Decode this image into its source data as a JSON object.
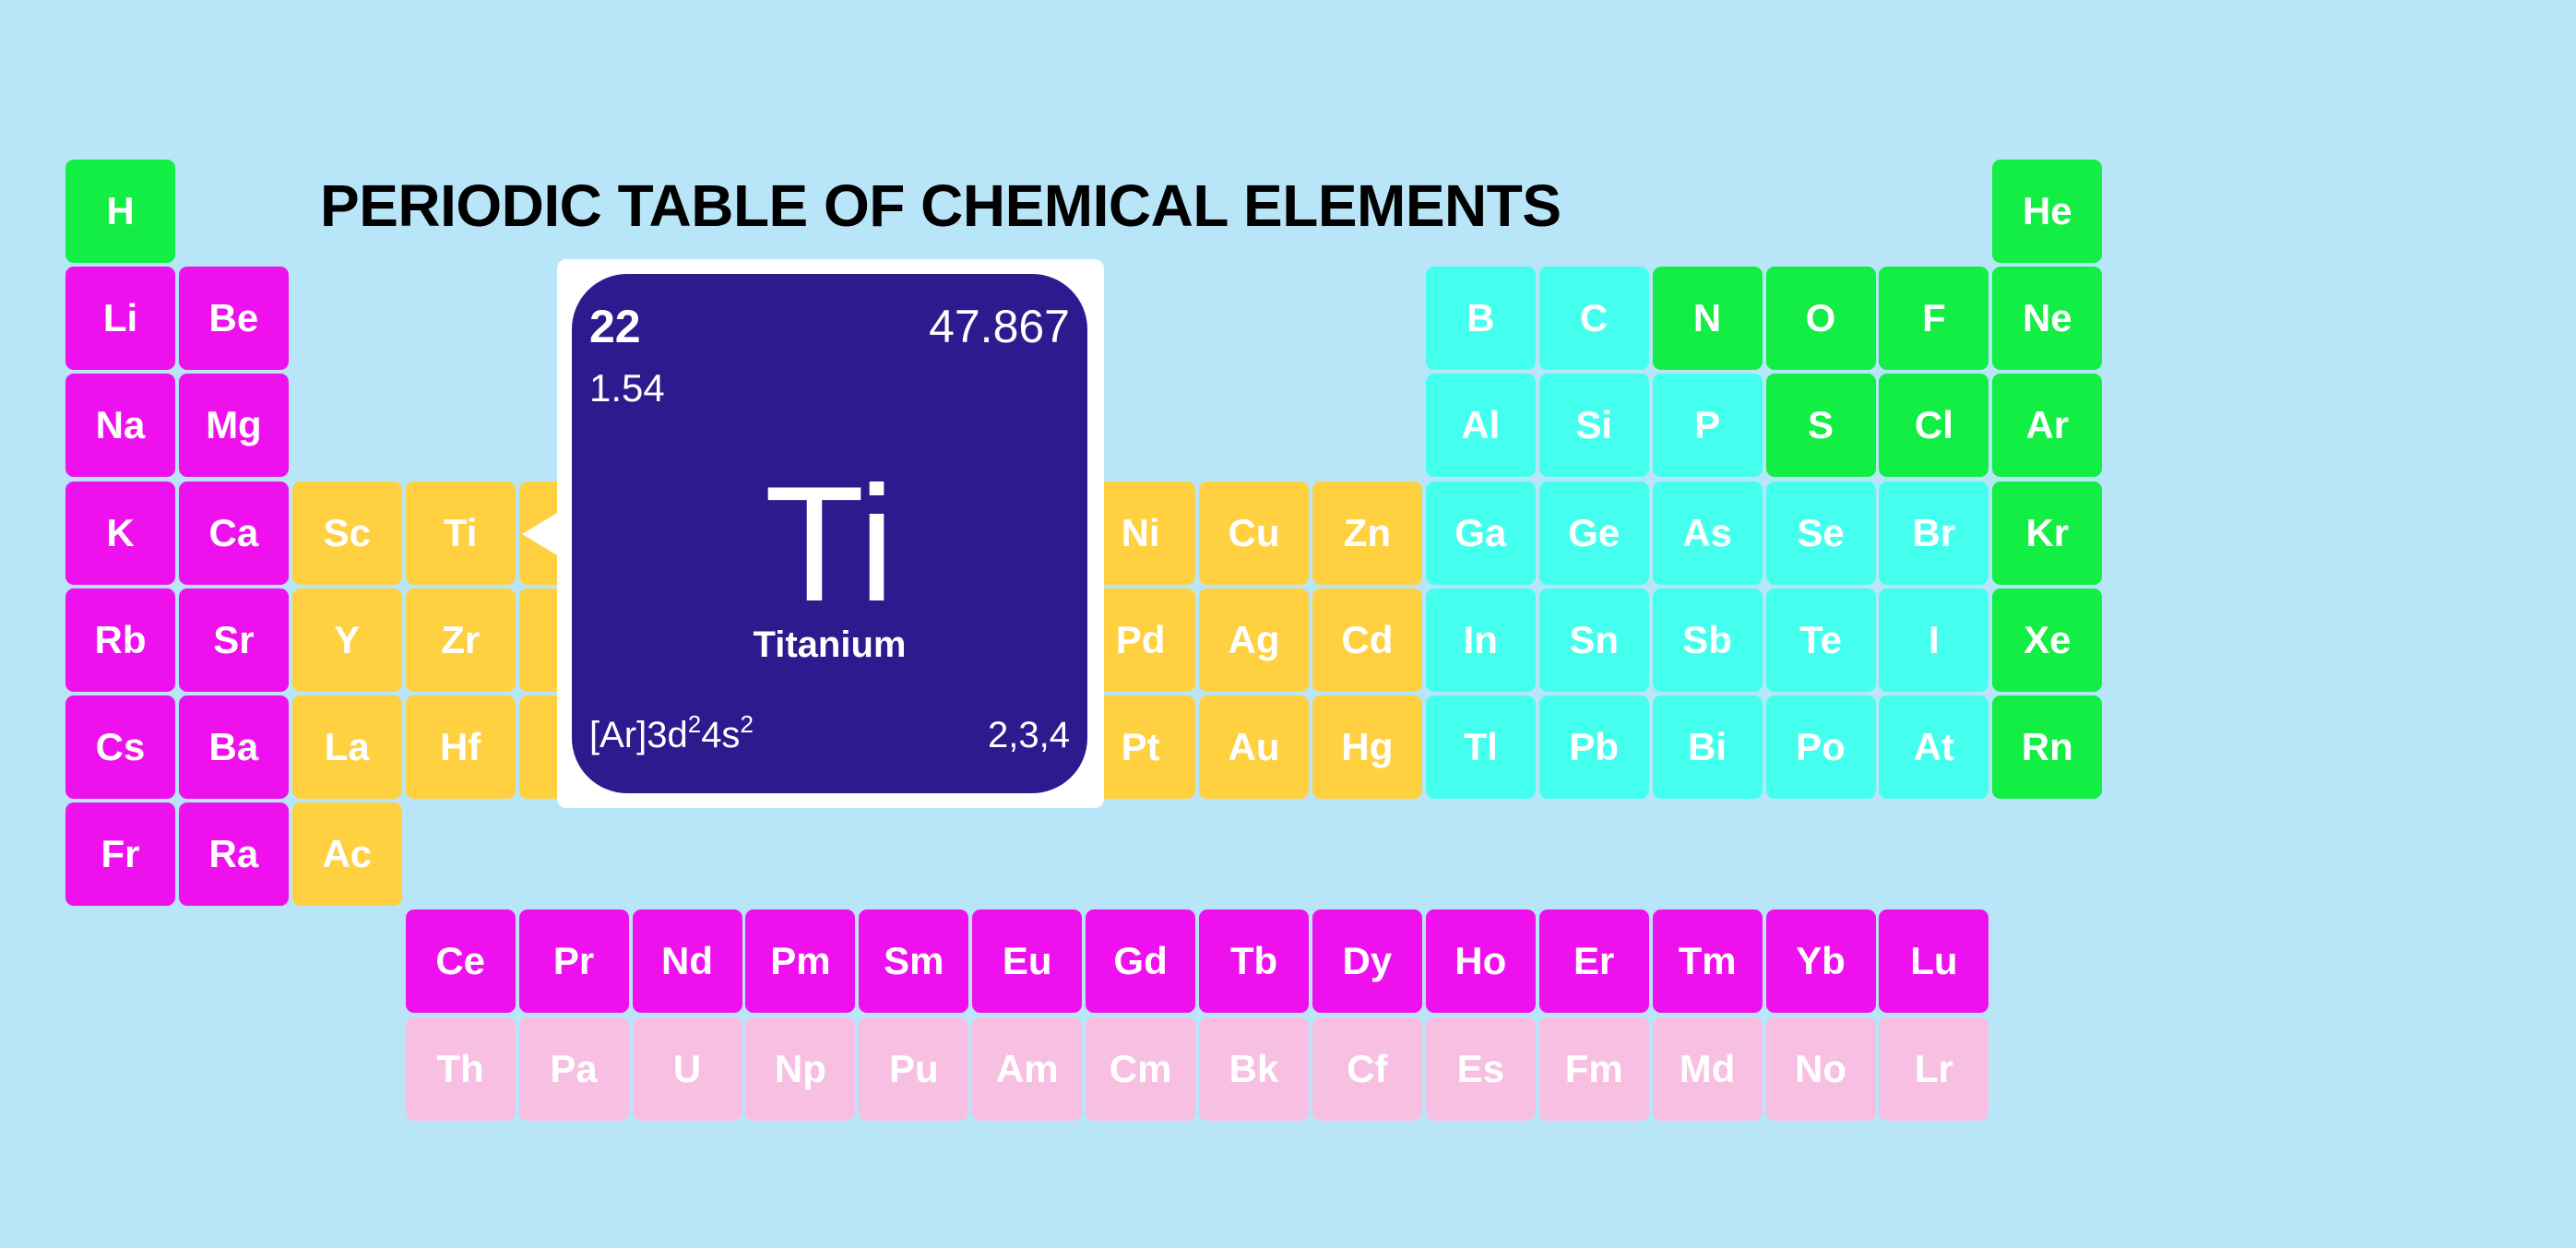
{
  "title": "PERIODIC TABLE OF CHEMICAL ELEMENTS",
  "table": {
    "rows": [
      [
        {
          "symbol": "H",
          "color": "#13ee44"
        },
        null,
        null,
        null,
        null,
        null,
        null,
        null,
        null,
        null,
        null,
        null,
        null,
        null,
        null,
        null,
        null,
        {
          "symbol": "He",
          "color": "#13ee44"
        }
      ],
      [
        {
          "symbol": "Li",
          "color": "#ee11ee"
        },
        {
          "symbol": "Be",
          "color": "#ee11ee"
        },
        null,
        null,
        null,
        null,
        null,
        null,
        null,
        null,
        null,
        null,
        {
          "symbol": "B",
          "color": "#44ffee"
        },
        {
          "symbol": "C",
          "color": "#44ffee"
        },
        {
          "symbol": "N",
          "color": "#13ee44"
        },
        {
          "symbol": "O",
          "color": "#13ee44"
        },
        {
          "symbol": "F",
          "color": "#13ee44"
        },
        {
          "symbol": "Ne",
          "color": "#13ee44"
        }
      ],
      [
        {
          "symbol": "Na",
          "color": "#ee11ee"
        },
        {
          "symbol": "Mg",
          "color": "#ee11ee"
        },
        null,
        null,
        null,
        null,
        null,
        null,
        null,
        null,
        null,
        null,
        {
          "symbol": "Al",
          "color": "#44ffee"
        },
        {
          "symbol": "Si",
          "color": "#44ffee"
        },
        {
          "symbol": "P",
          "color": "#44ffee"
        },
        {
          "symbol": "S",
          "color": "#13ee44"
        },
        {
          "symbol": "Cl",
          "color": "#13ee44"
        },
        {
          "symbol": "Ar",
          "color": "#13ee44"
        }
      ],
      [
        {
          "symbol": "K",
          "color": "#ee11ee"
        },
        {
          "symbol": "Ca",
          "color": "#ee11ee"
        },
        {
          "symbol": "Sc",
          "color": "#ffd040"
        },
        {
          "symbol": "Ti",
          "color": "#ffd040"
        },
        {
          "color": "#ffd040"
        },
        {
          "color": "#ffd040"
        },
        {
          "color": "#ffd040"
        },
        {
          "color": "#ffd040"
        },
        {
          "color": "#ffd040"
        },
        {
          "symbol": "Ni",
          "color": "#ffd040"
        },
        {
          "symbol": "Cu",
          "color": "#ffd040"
        },
        {
          "symbol": "Zn",
          "color": "#ffd040"
        },
        {
          "symbol": "Ga",
          "color": "#44ffee"
        },
        {
          "symbol": "Ge",
          "color": "#44ffee"
        },
        {
          "symbol": "As",
          "color": "#44ffee"
        },
        {
          "symbol": "Se",
          "color": "#44ffee"
        },
        {
          "symbol": "Br",
          "color": "#44ffee"
        },
        {
          "symbol": "Kr",
          "color": "#13ee44"
        }
      ],
      [
        {
          "symbol": "Rb",
          "color": "#ee11ee"
        },
        {
          "symbol": "Sr",
          "color": "#ee11ee"
        },
        {
          "symbol": "Y",
          "color": "#ffd040"
        },
        {
          "symbol": "Zr",
          "color": "#ffd040"
        },
        {
          "color": "#ffd040"
        },
        {
          "color": "#ffd040"
        },
        {
          "color": "#ffd040"
        },
        {
          "color": "#ffd040"
        },
        {
          "color": "#ffd040"
        },
        {
          "symbol": "Pd",
          "color": "#ffd040"
        },
        {
          "symbol": "Ag",
          "color": "#ffd040"
        },
        {
          "symbol": "Cd",
          "color": "#ffd040"
        },
        {
          "symbol": "In",
          "color": "#44ffee"
        },
        {
          "symbol": "Sn",
          "color": "#44ffee"
        },
        {
          "symbol": "Sb",
          "color": "#44ffee"
        },
        {
          "symbol": "Te",
          "color": "#44ffee"
        },
        {
          "symbol": "I",
          "color": "#44ffee"
        },
        {
          "symbol": "Xe",
          "color": "#13ee44"
        }
      ],
      [
        {
          "symbol": "Cs",
          "color": "#ee11ee"
        },
        {
          "symbol": "Ba",
          "color": "#ee11ee"
        },
        {
          "symbol": "La",
          "color": "#ffd040"
        },
        {
          "symbol": "Hf",
          "color": "#ffd040"
        },
        {
          "color": "#ffd040"
        },
        {
          "color": "#ffd040"
        },
        {
          "color": "#ffd040"
        },
        {
          "color": "#ffd040"
        },
        {
          "color": "#ffd040"
        },
        {
          "symbol": "Pt",
          "color": "#ffd040"
        },
        {
          "symbol": "Au",
          "color": "#ffd040"
        },
        {
          "symbol": "Hg",
          "color": "#ffd040"
        },
        {
          "symbol": "Tl",
          "color": "#44ffee"
        },
        {
          "symbol": "Pb",
          "color": "#44ffee"
        },
        {
          "symbol": "Bi",
          "color": "#44ffee"
        },
        {
          "symbol": "Po",
          "color": "#44ffee"
        },
        {
          "symbol": "At",
          "color": "#44ffee"
        },
        {
          "symbol": "Rn",
          "color": "#13ee44"
        }
      ],
      [
        {
          "symbol": "Fr",
          "color": "#ee11ee"
        },
        {
          "symbol": "Ra",
          "color": "#ee11ee"
        },
        {
          "symbol": "Ac",
          "color": "#ffd040"
        },
        null,
        null,
        null,
        null,
        null,
        null,
        null,
        null,
        null,
        null,
        null,
        null,
        null,
        null,
        null
      ],
      [
        null,
        null,
        null,
        {
          "symbol": "Ce",
          "color": "#ee11ee"
        },
        {
          "symbol": "Pr",
          "color": "#ee11ee"
        },
        {
          "symbol": "Nd",
          "color": "#ee11ee"
        },
        {
          "symbol": "Pm",
          "color": "#ee11ee"
        },
        {
          "symbol": "Sm",
          "color": "#ee11ee"
        },
        {
          "symbol": "Eu",
          "color": "#ee11ee"
        },
        {
          "symbol": "Gd",
          "color": "#ee11ee"
        },
        {
          "symbol": "Tb",
          "color": "#ee11ee"
        },
        {
          "symbol": "Dy",
          "color": "#ee11ee"
        },
        {
          "symbol": "Ho",
          "color": "#ee11ee"
        },
        {
          "symbol": "Er",
          "color": "#ee11ee"
        },
        {
          "symbol": "Tm",
          "color": "#ee11ee"
        },
        {
          "symbol": "Yb",
          "color": "#ee11ee"
        },
        {
          "symbol": "Lu",
          "color": "#ee11ee"
        },
        null
      ],
      [
        null,
        null,
        null,
        {
          "symbol": "Th",
          "color": "#f7c0e2"
        },
        {
          "symbol": "Pa",
          "color": "#f7c0e2"
        },
        {
          "symbol": "U",
          "color": "#f7c0e2"
        },
        {
          "symbol": "Np",
          "color": "#f7c0e2"
        },
        {
          "symbol": "Pu",
          "color": "#f7c0e2"
        },
        {
          "symbol": "Am",
          "color": "#f7c0e2"
        },
        {
          "symbol": "Cm",
          "color": "#f7c0e2"
        },
        {
          "symbol": "Bk",
          "color": "#f7c0e2"
        },
        {
          "symbol": "Cf",
          "color": "#f7c0e2"
        },
        {
          "symbol": "Es",
          "color": "#f7c0e2"
        },
        {
          "symbol": "Fm",
          "color": "#f7c0e2"
        },
        {
          "symbol": "Md",
          "color": "#f7c0e2"
        },
        {
          "symbol": "No",
          "color": "#f7c0e2"
        },
        {
          "symbol": "Lr",
          "color": "#f7c0e2"
        },
        null
      ]
    ]
  },
  "popup": {
    "number": "22",
    "mass": "47.867",
    "electronegativity": "1.54",
    "symbol": "Ti",
    "name": "Titanium",
    "configuration": [
      "[Ar]3d",
      "2",
      "4s",
      "2"
    ],
    "oxidation": "2,3,4"
  }
}
